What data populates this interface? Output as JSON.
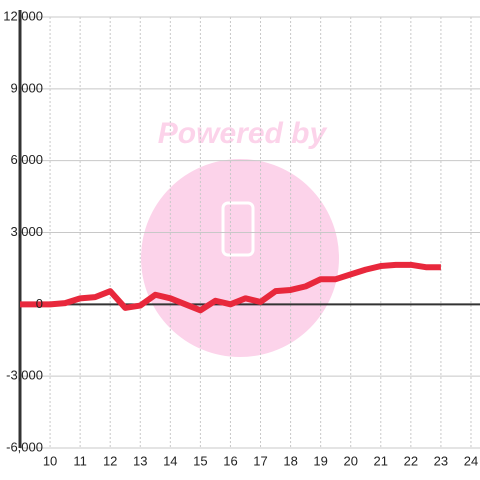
{
  "chart_data": {
    "type": "line",
    "watermark": "Powered by",
    "x": [
      9,
      9.5,
      10,
      10.5,
      11,
      11.5,
      12,
      12.5,
      13,
      13.5,
      14,
      14.5,
      15,
      15.5,
      16,
      16.5,
      17,
      17.5,
      18,
      18.5,
      19,
      19.5,
      20,
      20.5,
      21,
      21.5,
      22,
      22.5,
      23
    ],
    "series": [
      {
        "color": "#e8283c",
        "values": [
          0,
          0,
          0,
          50,
          250,
          300,
          550,
          -150,
          -50,
          400,
          250,
          0,
          -250,
          150,
          0,
          250,
          100,
          550,
          600,
          750,
          1050,
          1050,
          1250,
          1450,
          1600,
          1650,
          1650,
          1550,
          1550
        ]
      }
    ],
    "xlim": [
      9,
      24.3
    ],
    "xticks": [
      10,
      11,
      12,
      13,
      14,
      15,
      16,
      17,
      18,
      19,
      20,
      21,
      22,
      23,
      24
    ],
    "ylim": [
      -6000,
      12000
    ],
    "yticks": [
      {
        "value": -6000,
        "label": "-6,000"
      },
      {
        "value": -3000,
        "label": "-3,000"
      },
      0,
      {
        "value": 3000,
        "label": "3,000"
      },
      {
        "value": 6000,
        "label": "6,000"
      },
      {
        "value": 9000,
        "label": "9,000"
      },
      {
        "value": 12000,
        "label": "12,000"
      }
    ],
    "grid": true
  }
}
